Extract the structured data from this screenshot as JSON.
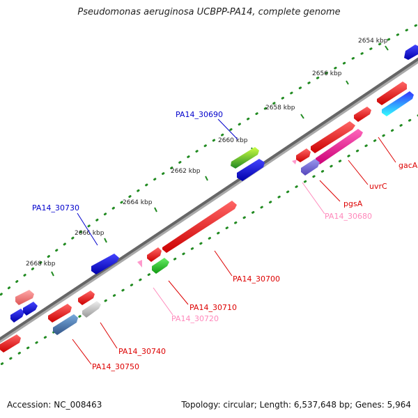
{
  "title": "Pseudomonas aeruginosa UCBPP-PA14, complete genome",
  "footer": {
    "accession": "Accession: NC_008463",
    "topology": "Topology: circular; Length: 6,537,648 bp; Genes: 5,964"
  },
  "ticks": {
    "unit": "kbp",
    "labels": [
      "2654 kbp",
      "2656 kbp",
      "2658 kbp",
      "2660 kbp",
      "2662 kbp",
      "2664 kbp",
      "2666 kbp",
      "2668 kbp"
    ]
  },
  "genes": [
    {
      "label": "gacA",
      "strand": "reverse",
      "color": "#ff0000"
    },
    {
      "label": "uvrC",
      "strand": "reverse",
      "color": "#ff0000"
    },
    {
      "label": "pgsA",
      "strand": "reverse",
      "color": "#ff1493"
    },
    {
      "label": "PA14_30680",
      "strand": "reverse",
      "color": "#ff99cc"
    },
    {
      "label": "PA14_30690",
      "strand": "forward",
      "color": "#33aa33"
    },
    {
      "label": "PA14_30700",
      "strand": "reverse",
      "color": "#ff0000"
    },
    {
      "label": "PA14_30710",
      "strand": "reverse",
      "color": "#ff0000"
    },
    {
      "label": "PA14_30720",
      "strand": "reverse",
      "color": "#ff99cc"
    },
    {
      "label": "PA14_30730",
      "strand": "forward",
      "color": "#0000ff"
    },
    {
      "label": "PA14_30740",
      "strand": "reverse",
      "color": "#ff0000"
    },
    {
      "label": "PA14_30750",
      "strand": "reverse",
      "color": "#ff0000"
    }
  ],
  "colors": {
    "backbone": "#777777",
    "tick": "#228b22",
    "forward_label": "#0000cc",
    "reverse_label": "#dd0000",
    "pink_label": "#ff88bb"
  }
}
